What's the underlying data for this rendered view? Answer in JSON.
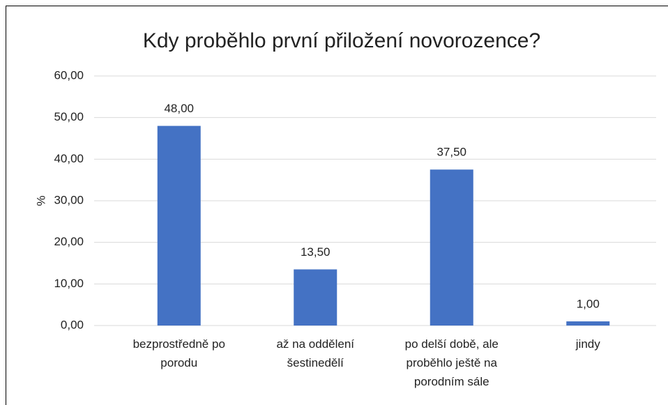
{
  "chart_data": {
    "type": "bar",
    "title": "Kdy proběhlo první přiložení novorozence?",
    "y_label": "%",
    "categories": [
      "bezprostředně po porodu",
      "až na oddělení šestinedělí",
      "po delší době, ale proběhlo ještě na porodním sále",
      "jindy"
    ],
    "values": [
      48,
      13.5,
      37.5,
      1
    ],
    "value_labels": [
      "48,00",
      "13,50",
      "37,50",
      "1,00"
    ],
    "color": "#4472c4",
    "ylim": [
      0,
      60
    ],
    "yticks": [
      {
        "value": 0,
        "label": "0,00"
      },
      {
        "value": 10,
        "label": "10,00"
      },
      {
        "value": 20,
        "label": "20,00"
      },
      {
        "value": 30,
        "label": "30,00"
      },
      {
        "value": 40,
        "label": "40,00"
      },
      {
        "value": 50,
        "label": "50,00"
      },
      {
        "value": 60,
        "label": "60,00"
      }
    ],
    "grid": true
  }
}
